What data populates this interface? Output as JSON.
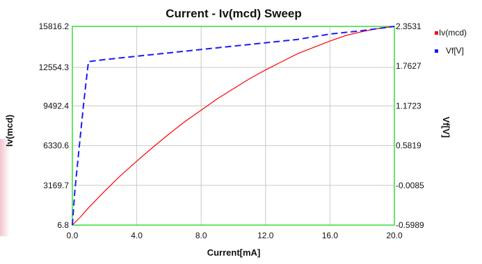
{
  "chart_data": {
    "type": "line",
    "title": "Current - Iv(mcd) Sweep",
    "xlabel": "Current[mA]",
    "ylabel_left": "Iv(mcd)",
    "ylabel_right": "Vf[V]",
    "xlim": [
      0,
      20
    ],
    "ylim_left": [
      6.8,
      15816.2
    ],
    "ylim_right": [
      -0.5989,
      2.3531
    ],
    "x_ticks": [
      {
        "value": 0,
        "label": "0.0"
      },
      {
        "value": 4,
        "label": "4.0"
      },
      {
        "value": 8,
        "label": "8.0"
      },
      {
        "value": 12,
        "label": "12.0"
      },
      {
        "value": 16,
        "label": "16.0"
      },
      {
        "value": 20,
        "label": "20.0"
      }
    ],
    "y_left_ticks": [
      {
        "value": 6.8,
        "label": "6.8"
      },
      {
        "value": 3169.7,
        "label": "3169.7"
      },
      {
        "value": 6330.6,
        "label": "6330.6"
      },
      {
        "value": 9492.4,
        "label": "9492.4"
      },
      {
        "value": 12554.3,
        "label": "12554.3"
      },
      {
        "value": 15816.2,
        "label": "15816.2"
      }
    ],
    "y_right_ticks": [
      {
        "value": -0.5989,
        "label": "-0.5989"
      },
      {
        "value": -0.0085,
        "label": "-0.0085"
      },
      {
        "value": 0.5819,
        "label": "0.5819"
      },
      {
        "value": 1.1723,
        "label": "1.1723"
      },
      {
        "value": 1.7627,
        "label": "1.7627"
      },
      {
        "value": 2.3531,
        "label": "2.3531"
      }
    ],
    "grid": true,
    "legend_position": "top-right",
    "series": [
      {
        "name": "Iv(mcd)",
        "axis": "left",
        "color": "#ff0000",
        "line_style": "solid",
        "x": [
          0.0,
          0.5,
          1.0,
          2.0,
          3.0,
          4.0,
          5.0,
          6.0,
          7.0,
          8.0,
          9.0,
          10.0,
          11.0,
          12.0,
          13.0,
          14.0,
          15.0,
          16.0,
          17.0,
          18.0,
          19.0,
          20.0
        ],
        "y": [
          6.8,
          650,
          1380,
          2700,
          3950,
          5100,
          6200,
          7250,
          8250,
          9150,
          10050,
          10850,
          11650,
          12350,
          13000,
          13650,
          14150,
          14650,
          15100,
          15400,
          15650,
          15816.2
        ]
      },
      {
        "name": "Vf[V]",
        "axis": "right",
        "color": "#1a1aff",
        "line_style": "dashed",
        "x": [
          0.0,
          0.15,
          0.4,
          0.7,
          0.9,
          1.0,
          2.0,
          4.0,
          6.0,
          8.0,
          10.0,
          12.0,
          14.0,
          16.0,
          18.0,
          20.0
        ],
        "y": [
          -0.5989,
          -0.1,
          0.5,
          1.2,
          1.62,
          1.83,
          1.86,
          1.91,
          1.96,
          2.01,
          2.06,
          2.11,
          2.16,
          2.24,
          2.29,
          2.3531
        ]
      }
    ]
  }
}
